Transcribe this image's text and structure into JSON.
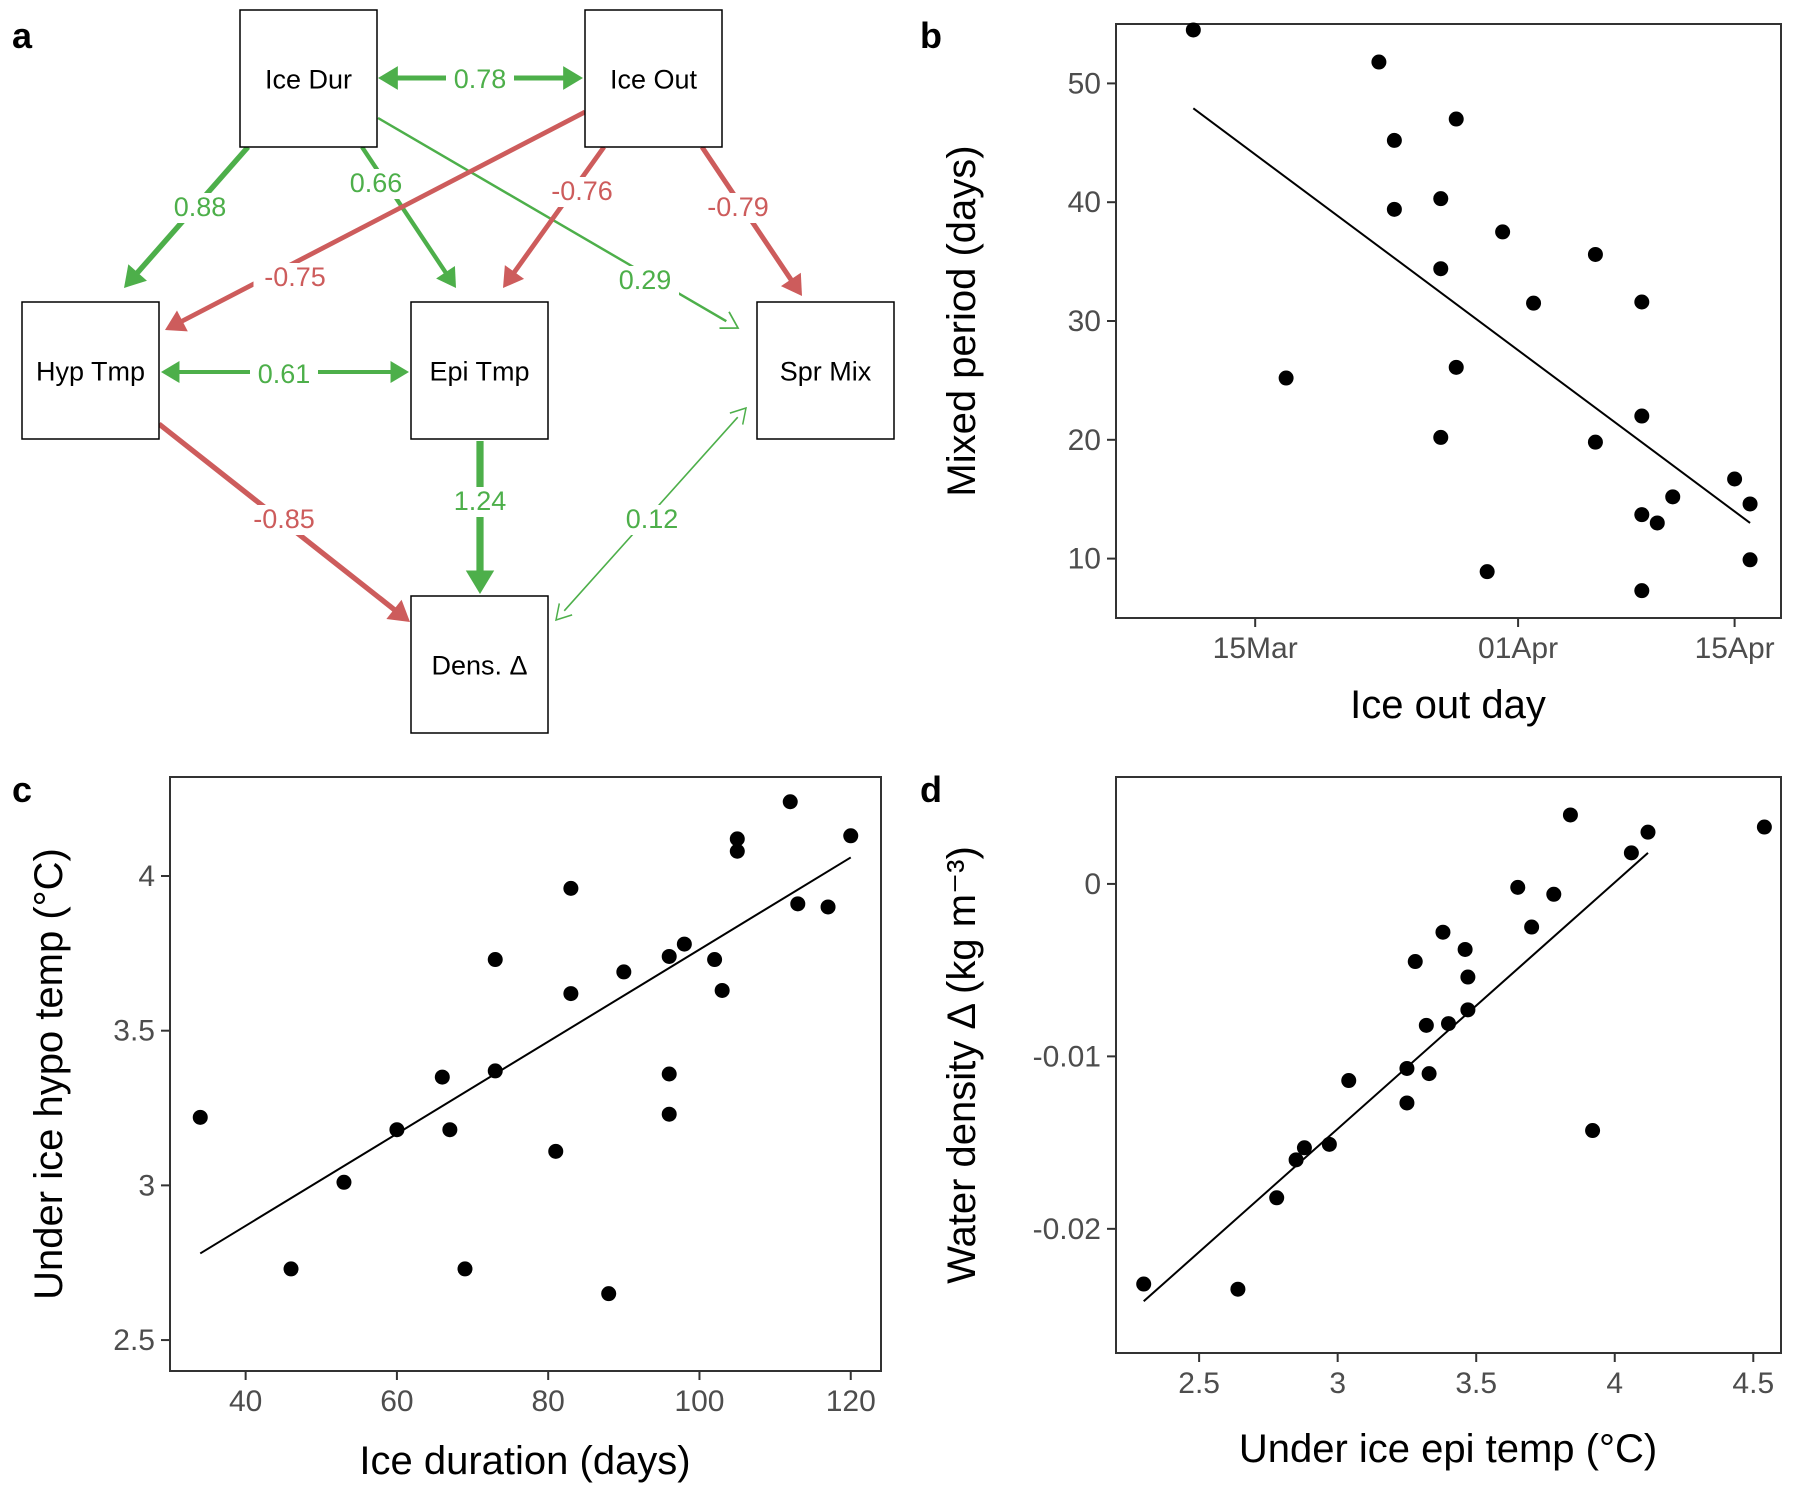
{
  "colors": {
    "positive": "#4DAF4A",
    "negative": "#CD5C5C",
    "point": "#000000",
    "text": "#000000",
    "tick_text": "#4d4d4d"
  },
  "panel_a": {
    "letter": "a",
    "nodes": [
      {
        "id": "icedur",
        "label": "Ice Dur"
      },
      {
        "id": "iceout",
        "label": "Ice Out"
      },
      {
        "id": "hyptmp",
        "label": "Hyp Tmp"
      },
      {
        "id": "epitmp",
        "label": "Epi Tmp"
      },
      {
        "id": "sprmix",
        "label": "Spr Mix"
      },
      {
        "id": "dens",
        "label": "Dens. Δ"
      }
    ],
    "edges": [
      {
        "from": "icedur",
        "to": "iceout",
        "coef": "0.78",
        "sign": "positive",
        "bidirectional": true
      },
      {
        "from": "icedur",
        "to": "hyptmp",
        "coef": "0.88",
        "sign": "positive",
        "bidirectional": false
      },
      {
        "from": "icedur",
        "to": "epitmp",
        "coef": "0.66",
        "sign": "positive",
        "bidirectional": false
      },
      {
        "from": "icedur",
        "to": "sprmix",
        "coef": "0.29",
        "sign": "positive",
        "bidirectional": false
      },
      {
        "from": "iceout",
        "to": "hyptmp",
        "coef": "-0.75",
        "sign": "negative",
        "bidirectional": false
      },
      {
        "from": "iceout",
        "to": "epitmp",
        "coef": "-0.76",
        "sign": "negative",
        "bidirectional": false
      },
      {
        "from": "iceout",
        "to": "sprmix",
        "coef": "-0.79",
        "sign": "negative",
        "bidirectional": false
      },
      {
        "from": "hyptmp",
        "to": "epitmp",
        "coef": "0.61",
        "sign": "positive",
        "bidirectional": true
      },
      {
        "from": "hyptmp",
        "to": "dens",
        "coef": "-0.85",
        "sign": "negative",
        "bidirectional": false
      },
      {
        "from": "epitmp",
        "to": "dens",
        "coef": "1.24",
        "sign": "positive",
        "bidirectional": false
      },
      {
        "from": "sprmix",
        "to": "dens",
        "coef": "0.12",
        "sign": "positive",
        "bidirectional": true
      }
    ]
  },
  "chart_data": [
    {
      "panel": "b",
      "type": "scatter",
      "xlabel": "Ice out day",
      "ylabel": "Mixed period (days)",
      "x_is_date": true,
      "xlim": [
        "2000-03-06",
        "2000-04-18"
      ],
      "ylim": [
        5,
        55
      ],
      "xticks": [
        {
          "value": "2000-03-15",
          "label": "15Mar"
        },
        {
          "value": "2000-04-01",
          "label": "01Apr"
        },
        {
          "value": "2000-04-15",
          "label": "15Apr"
        }
      ],
      "yticks": [
        10,
        20,
        30,
        40,
        50
      ],
      "grid": false,
      "points": [
        {
          "x": "2000-03-11",
          "y": 54.5
        },
        {
          "x": "2000-03-17",
          "y": 25.2
        },
        {
          "x": "2000-03-23",
          "y": 51.8
        },
        {
          "x": "2000-03-24",
          "y": 45.2
        },
        {
          "x": "2000-03-24",
          "y": 39.4
        },
        {
          "x": "2000-03-27",
          "y": 40.3
        },
        {
          "x": "2000-03-27",
          "y": 34.4
        },
        {
          "x": "2000-03-27",
          "y": 20.2
        },
        {
          "x": "2000-03-28",
          "y": 47.0
        },
        {
          "x": "2000-03-28",
          "y": 26.1
        },
        {
          "x": "2000-03-30",
          "y": 8.9
        },
        {
          "x": "2000-03-31",
          "y": 37.5
        },
        {
          "x": "2000-04-02",
          "y": 31.5
        },
        {
          "x": "2000-04-06",
          "y": 35.6
        },
        {
          "x": "2000-04-06",
          "y": 19.8
        },
        {
          "x": "2000-04-09",
          "y": 31.6
        },
        {
          "x": "2000-04-09",
          "y": 22.0
        },
        {
          "x": "2000-04-09",
          "y": 13.7
        },
        {
          "x": "2000-04-09",
          "y": 7.3
        },
        {
          "x": "2000-04-10",
          "y": 13.0
        },
        {
          "x": "2000-04-11",
          "y": 15.2
        },
        {
          "x": "2000-04-15",
          "y": 16.7
        },
        {
          "x": "2000-04-16",
          "y": 14.6
        },
        {
          "x": "2000-04-16",
          "y": 9.9
        }
      ],
      "fit_line": [
        {
          "x": "2000-03-11",
          "y": 47.9
        },
        {
          "x": "2000-04-16",
          "y": 13.0
        }
      ]
    },
    {
      "panel": "c",
      "type": "scatter",
      "xlabel": "Ice duration (days)",
      "ylabel": "Under ice hypo temp (°C)",
      "xlim": [
        30,
        124
      ],
      "ylim": [
        2.4,
        4.32
      ],
      "xticks": [
        40,
        60,
        80,
        100,
        120
      ],
      "yticks": [
        2.5,
        3,
        3.5,
        4
      ],
      "ytick_labels": [
        "2.5",
        "3",
        "3.5",
        "4"
      ],
      "grid": false,
      "points": [
        {
          "x": 34,
          "y": 3.22
        },
        {
          "x": 46,
          "y": 2.73
        },
        {
          "x": 53,
          "y": 3.01
        },
        {
          "x": 60,
          "y": 3.18
        },
        {
          "x": 66,
          "y": 3.35
        },
        {
          "x": 67,
          "y": 3.18
        },
        {
          "x": 69,
          "y": 2.73
        },
        {
          "x": 73,
          "y": 3.73
        },
        {
          "x": 73,
          "y": 3.37
        },
        {
          "x": 81,
          "y": 3.11
        },
        {
          "x": 83,
          "y": 3.96
        },
        {
          "x": 83,
          "y": 3.62
        },
        {
          "x": 88,
          "y": 2.65
        },
        {
          "x": 90,
          "y": 3.69
        },
        {
          "x": 96,
          "y": 3.74
        },
        {
          "x": 96,
          "y": 3.36
        },
        {
          "x": 96,
          "y": 3.23
        },
        {
          "x": 98,
          "y": 3.78
        },
        {
          "x": 102,
          "y": 3.73
        },
        {
          "x": 103,
          "y": 3.63
        },
        {
          "x": 105,
          "y": 4.12
        },
        {
          "x": 105,
          "y": 4.08
        },
        {
          "x": 112,
          "y": 4.24
        },
        {
          "x": 113,
          "y": 3.91
        },
        {
          "x": 117,
          "y": 3.9
        },
        {
          "x": 120,
          "y": 4.13
        }
      ],
      "fit_line": [
        {
          "x": 34,
          "y": 2.78
        },
        {
          "x": 120,
          "y": 4.06
        }
      ]
    },
    {
      "panel": "d",
      "type": "scatter",
      "xlabel": "Under ice epi temp (°C)",
      "ylabel": "Water density Δ (kg m⁻³)",
      "xlim": [
        2.2,
        4.6
      ],
      "ylim": [
        -0.0272,
        0.0062
      ],
      "xticks": [
        2.5,
        3,
        3.5,
        4,
        4.5
      ],
      "xtick_labels": [
        "2.5",
        "3",
        "3.5",
        "4",
        "4.5"
      ],
      "yticks": [
        -0.02,
        -0.01,
        0
      ],
      "ytick_labels": [
        "-0.02",
        "-0.01",
        "0"
      ],
      "grid": false,
      "points": [
        {
          "x": 2.3,
          "y": -0.0232
        },
        {
          "x": 2.64,
          "y": -0.0235
        },
        {
          "x": 2.78,
          "y": -0.0182
        },
        {
          "x": 2.85,
          "y": -0.016
        },
        {
          "x": 2.88,
          "y": -0.0153
        },
        {
          "x": 2.97,
          "y": -0.0151
        },
        {
          "x": 3.04,
          "y": -0.0114
        },
        {
          "x": 3.25,
          "y": -0.0107
        },
        {
          "x": 3.25,
          "y": -0.0127
        },
        {
          "x": 3.28,
          "y": -0.0045
        },
        {
          "x": 3.32,
          "y": -0.0082
        },
        {
          "x": 3.33,
          "y": -0.011
        },
        {
          "x": 3.38,
          "y": -0.0028
        },
        {
          "x": 3.4,
          "y": -0.0081
        },
        {
          "x": 3.46,
          "y": -0.0038
        },
        {
          "x": 3.47,
          "y": -0.0054
        },
        {
          "x": 3.47,
          "y": -0.0073
        },
        {
          "x": 3.65,
          "y": -0.0002
        },
        {
          "x": 3.7,
          "y": -0.0025
        },
        {
          "x": 3.78,
          "y": -0.0006
        },
        {
          "x": 3.84,
          "y": 0.004
        },
        {
          "x": 3.92,
          "y": -0.0143
        },
        {
          "x": 4.06,
          "y": 0.0018
        },
        {
          "x": 4.12,
          "y": 0.003
        },
        {
          "x": 4.54,
          "y": 0.0033
        }
      ],
      "fit_line": [
        {
          "x": 2.3,
          "y": -0.0242
        },
        {
          "x": 4.12,
          "y": 0.0018
        }
      ]
    }
  ]
}
